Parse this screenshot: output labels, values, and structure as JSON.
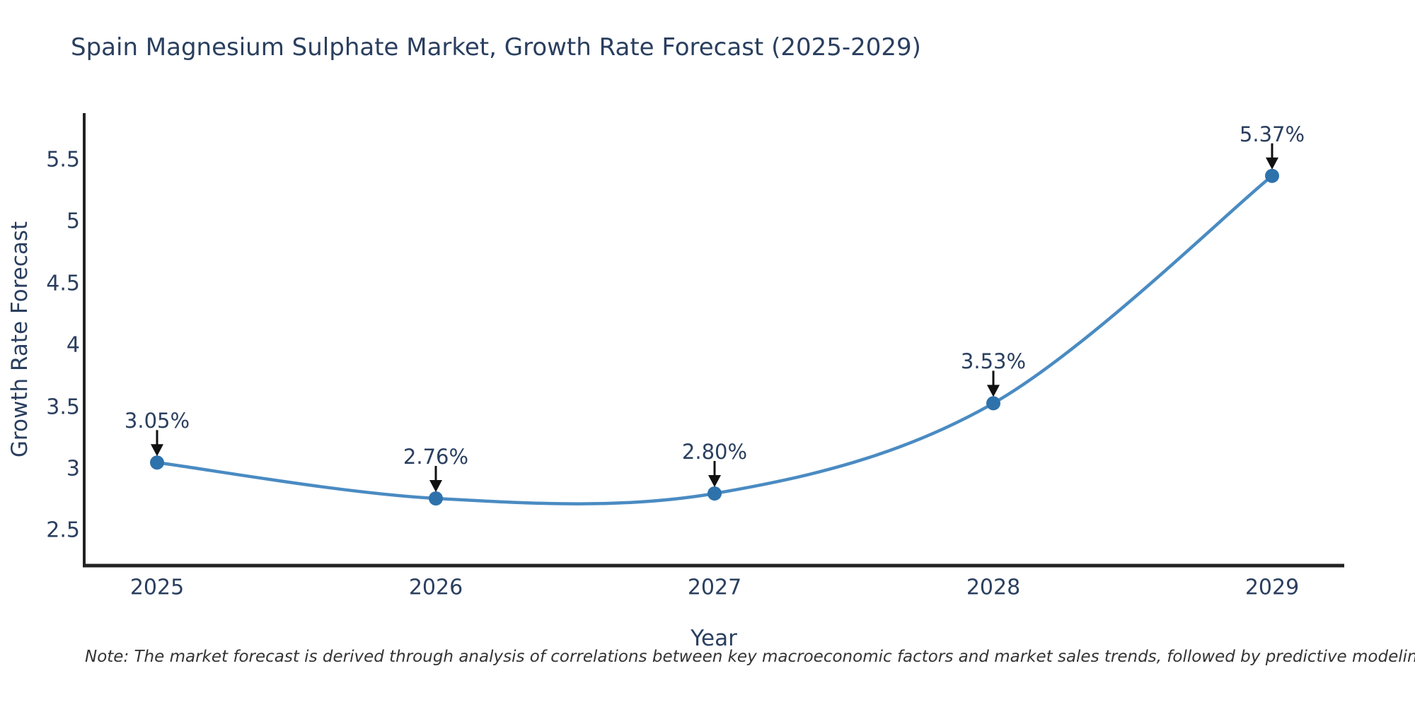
{
  "page": {
    "background": "#ffffff"
  },
  "chart_data": {
    "type": "line",
    "title": "Spain Magnesium Sulphate Market, Growth Rate Forecast (2025-2029)",
    "xlabel": "Year",
    "ylabel": "Growth Rate Forecast",
    "categories": [
      "2025",
      "2026",
      "2027",
      "2028",
      "2029"
    ],
    "values": [
      3.05,
      2.76,
      2.8,
      3.53,
      5.37
    ],
    "point_labels": [
      "3.05%",
      "2.76%",
      "2.80%",
      "3.53%",
      "5.37%"
    ],
    "ytick_values": [
      2.5,
      3,
      3.5,
      4,
      4.5,
      5,
      5.5
    ],
    "ytick_labels": [
      "2.5",
      "3",
      "3.5",
      "4",
      "4.5",
      "5",
      "5.5"
    ],
    "ylim": [
      2.2,
      5.9
    ],
    "grid": false,
    "legend": "none",
    "line_shape": "spline",
    "marker": "circle",
    "annotation_arrows": "down",
    "note": "Note: The market forecast is derived through analysis of correlations between key macroeconomic factors and market sales trends, followed by predictive modeling to project future sales",
    "colors": {
      "line": "#4a8bc2",
      "marker": "#2e72ac",
      "axis": "#222222",
      "arrow": "#111111",
      "text": "#2a3f5f",
      "note_text": "#333333",
      "background": "#ffffff"
    }
  }
}
